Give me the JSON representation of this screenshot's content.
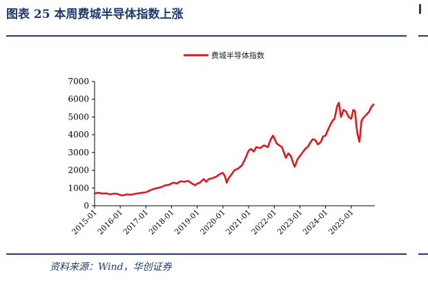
{
  "figure": {
    "title": "图表 25  本周费城半导体指数上涨",
    "source": "资料来源：Wind，华创证券"
  },
  "colors": {
    "accent": "#1f3a70",
    "series": "#e3141c"
  },
  "chart_data": {
    "type": "line",
    "title": "",
    "xlabel": "",
    "ylabel": "",
    "legend": {
      "position": "top-center"
    },
    "grid": false,
    "ylim": [
      0,
      7000
    ],
    "yticks": [
      0,
      1000,
      2000,
      3000,
      4000,
      5000,
      6000,
      7000
    ],
    "ytick_labels": [
      "0",
      "1000",
      "2000",
      "3000",
      "4000",
      "5000",
      "6000",
      "7000"
    ],
    "xticks": [
      "2015-01",
      "2016-01",
      "2017-01",
      "2018-01",
      "2019-01",
      "2020-01",
      "2021-01",
      "2022-01",
      "2023-01",
      "2024-01",
      "2025-01"
    ],
    "x_range": [
      2015.0,
      2025.92
    ],
    "series": [
      {
        "name": "费城半导体指数",
        "color": "#e3141c",
        "x": [
          2015.0,
          2015.15,
          2015.3,
          2015.45,
          2015.6,
          2015.75,
          2015.9,
          2016.0,
          2016.1,
          2016.25,
          2016.4,
          2016.55,
          2016.7,
          2016.85,
          2017.0,
          2017.15,
          2017.3,
          2017.45,
          2017.6,
          2017.75,
          2017.9,
          2018.0,
          2018.1,
          2018.2,
          2018.35,
          2018.5,
          2018.65,
          2018.8,
          2018.92,
          2019.0,
          2019.1,
          2019.25,
          2019.35,
          2019.45,
          2019.6,
          2019.75,
          2019.9,
          2020.0,
          2020.08,
          2020.15,
          2020.2,
          2020.3,
          2020.45,
          2020.6,
          2020.75,
          2020.9,
          2021.0,
          2021.1,
          2021.2,
          2021.3,
          2021.45,
          2021.6,
          2021.75,
          2021.85,
          2021.95,
          2022.0,
          2022.1,
          2022.2,
          2022.3,
          2022.45,
          2022.55,
          2022.65,
          2022.75,
          2022.8,
          2022.9,
          2023.0,
          2023.1,
          2023.2,
          2023.3,
          2023.4,
          2023.5,
          2023.6,
          2023.7,
          2023.82,
          2023.9,
          2024.0,
          2024.1,
          2024.2,
          2024.28,
          2024.35,
          2024.45,
          2024.52,
          2024.6,
          2024.7,
          2024.8,
          2024.9,
          2025.0,
          2025.08,
          2025.15,
          2025.2,
          2025.25,
          2025.32,
          2025.4,
          2025.5,
          2025.6,
          2025.7,
          2025.8,
          2025.87
        ],
        "y": [
          700,
          730,
          690,
          700,
          640,
          680,
          670,
          600,
          580,
          640,
          620,
          660,
          700,
          730,
          760,
          860,
          950,
          1000,
          1050,
          1150,
          1180,
          1260,
          1300,
          1250,
          1380,
          1350,
          1400,
          1250,
          1150,
          1250,
          1300,
          1500,
          1350,
          1500,
          1550,
          1650,
          1800,
          1850,
          1650,
          1300,
          1500,
          1700,
          2000,
          2100,
          2300,
          2750,
          3100,
          3200,
          3050,
          3300,
          3250,
          3400,
          3300,
          3700,
          3950,
          3800,
          3500,
          3400,
          3300,
          2700,
          2950,
          2800,
          2350,
          2200,
          2600,
          2800,
          3000,
          3200,
          3300,
          3550,
          3750,
          3700,
          3450,
          3600,
          3900,
          3950,
          4300,
          4600,
          4800,
          4900,
          5600,
          5800,
          5000,
          5400,
          5300,
          5000,
          4900,
          5400,
          5300,
          4500,
          4000,
          3600,
          4800,
          5000,
          5150,
          5300,
          5600,
          5700
        ]
      }
    ]
  }
}
